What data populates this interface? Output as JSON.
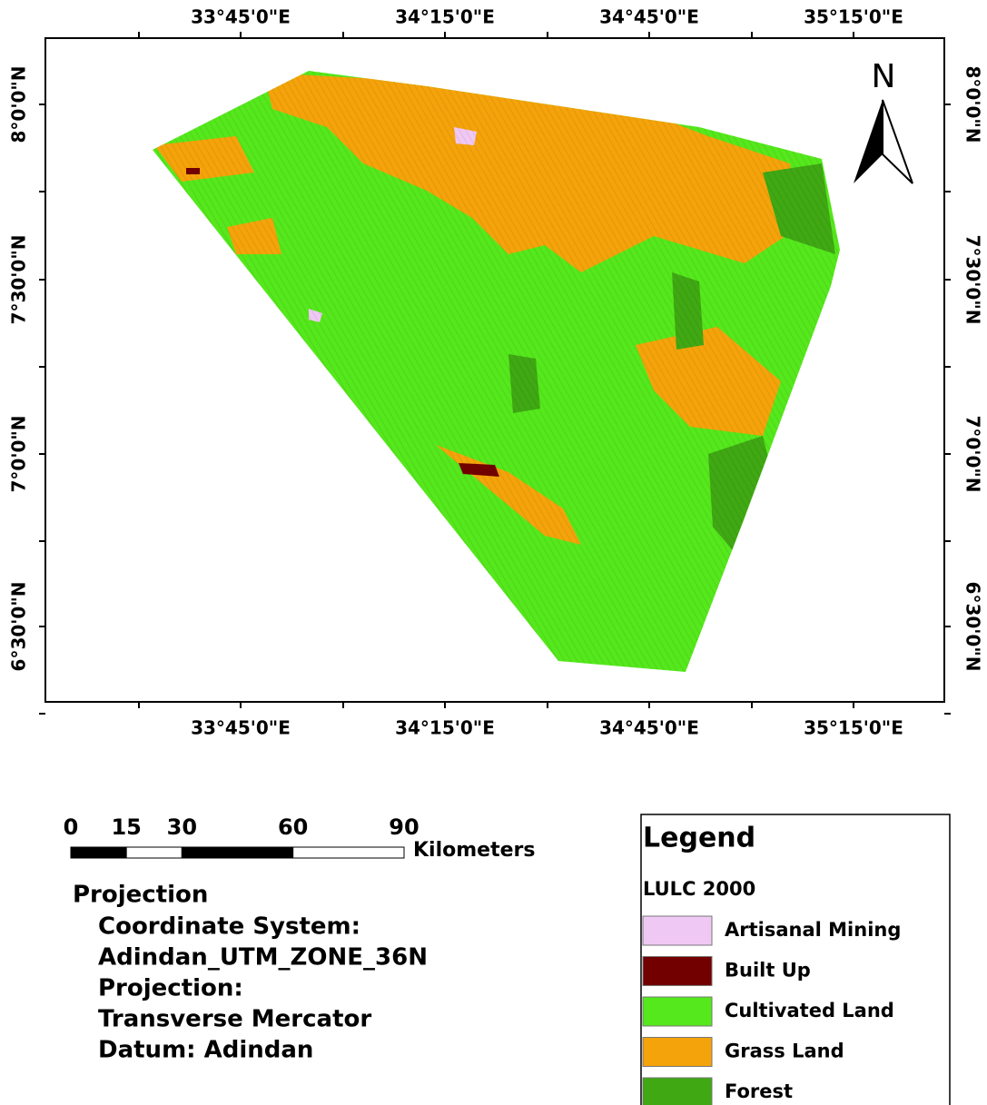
{
  "map": {
    "x_labels": [
      "33°45'0\"E",
      "34°15'0\"E",
      "34°45'0\"E",
      "35°15'0\"E"
    ],
    "y_labels": [
      "8°0'0\"N",
      "7°30'0\"N",
      "7°0'0\"N",
      "6°30'0\"N"
    ],
    "north": "N"
  },
  "scale_bar": {
    "ticks": [
      0,
      15,
      30,
      60,
      90
    ],
    "unit": "Kilometers"
  },
  "projection": {
    "title": "Projection",
    "lines": [
      "Coordinate System:",
      "Adindan_UTM_ZONE_36N",
      "Projection:",
      "Transverse Mercator",
      "Datum: Adindan"
    ]
  },
  "legend": {
    "title": "Legend",
    "subtitle": "LULC 2000",
    "items": [
      {
        "label": "Artisanal Mining",
        "color": "#f0c8f4"
      },
      {
        "label": "Built Up",
        "color": "#730000"
      },
      {
        "label": "Cultivated Land",
        "color": "#55e81c"
      },
      {
        "label": "Grass Land",
        "color": "#f5a30a"
      },
      {
        "label": "Forest",
        "color": "#3fa813"
      }
    ]
  }
}
